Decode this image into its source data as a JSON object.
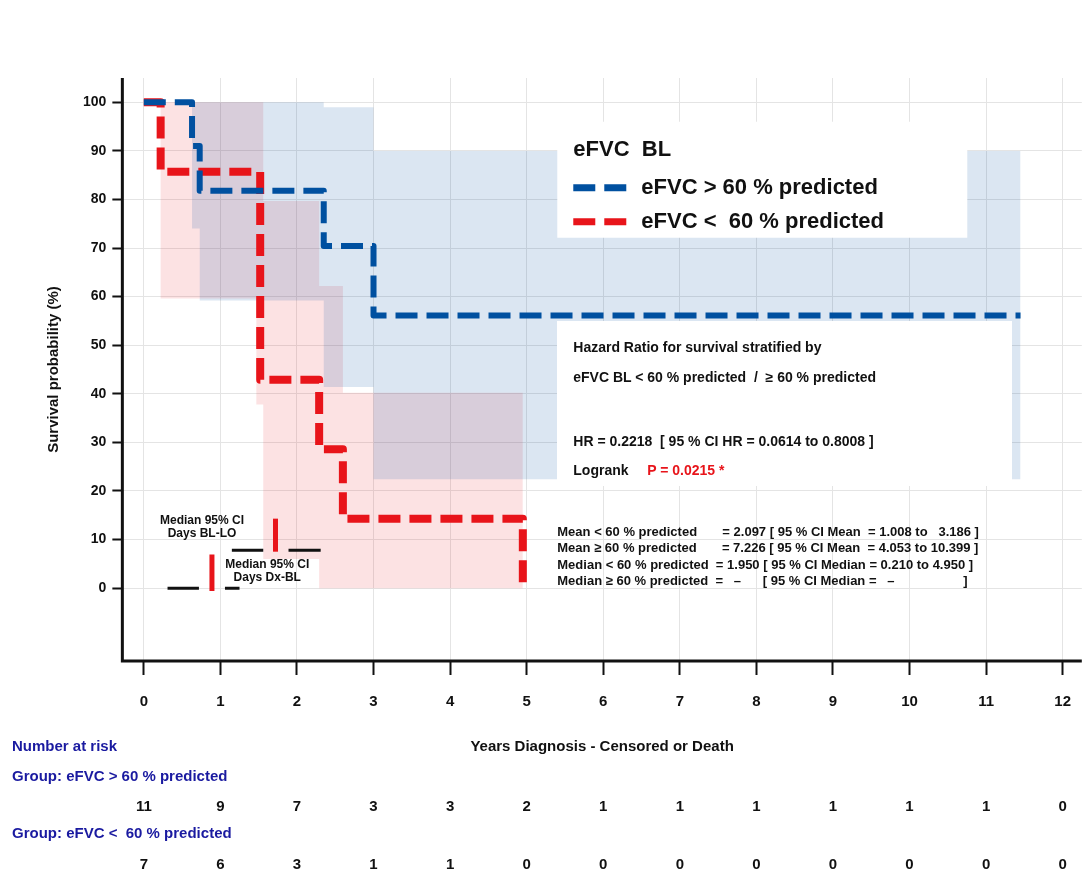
{
  "chart_data": {
    "type": "step",
    "xlabel": "Years Diagnosis - Censored or Death",
    "ylabel": "Survival probability (%)",
    "legend_title": "eFVC  BL",
    "legend": "top right",
    "grid": true,
    "xlim": [
      -0.28,
      12.25
    ],
    "xticks": [
      0,
      1,
      2,
      3,
      4,
      5,
      6,
      7,
      8,
      9,
      10,
      11,
      12
    ],
    "ylim": [
      -15,
      105
    ],
    "yticks": [
      0,
      10,
      20,
      30,
      40,
      50,
      60,
      70,
      80,
      90,
      100
    ],
    "line_style": "dashed",
    "marker": "none",
    "series": [
      {
        "name": "eFVC > 60 % predicted",
        "color": "#0050a0",
        "x": [
          0,
          0.63,
          0.73,
          2.35,
          3.0,
          11.45
        ],
        "values": [
          100,
          91,
          81.8,
          70.4,
          56.1,
          56.1
        ],
        "upper": [
          100,
          100,
          100,
          99,
          90,
          90
        ],
        "lower": [
          100,
          74,
          59.2,
          41.4,
          22.4,
          22.4
        ]
      },
      {
        "name": "eFVC <  60 % predicted",
        "color": "#e8141a",
        "x": [
          0,
          0.22,
          1.47,
          1.52,
          1.56,
          2.29,
          2.6,
          4.95
        ],
        "values": [
          100,
          85.7,
          85.7,
          42.9,
          42.9,
          28.6,
          14.3,
          0
        ],
        "upper": [
          100,
          100,
          100,
          100,
          79.7,
          62.2,
          40.2,
          40.2
        ],
        "lower": [
          100,
          59.6,
          37.8,
          37.8,
          6,
          0,
          0,
          0
        ]
      },
      {
        "color": "#111111",
        "type": "line",
        "line_style": "solid",
        "x": [
          0.31,
          0.72,
          0.9,
          1.06,
          1.25
        ],
        "values": [
          0,
          0,
          null,
          0,
          0
        ]
      },
      {
        "color": "#e8141a",
        "type": "line",
        "line_style": "solid",
        "x": [
          0.89,
          0.89
        ],
        "values": [
          -0.6,
          6.9
        ]
      },
      {
        "color": "#111111",
        "type": "line",
        "line_style": "solid",
        "x": [
          1.15,
          1.56,
          1.7,
          1.89,
          2.31
        ],
        "values": [
          7.8,
          7.8,
          null,
          7.8,
          7.8
        ]
      },
      {
        "color": "#e8141a",
        "type": "line",
        "line_style": "solid",
        "x": [
          1.72,
          1.72
        ],
        "values": [
          7.5,
          14.3
        ]
      }
    ],
    "annotations": [
      "Number at risk",
      "Group: eFVC > 60 % predicted",
      "11 9 7 3 3 2 1 1 1 1 1 1 0",
      "Group: eFVC <  60 % predicted",
      "7 6 3 1 1 0 0 0 0 0 0 0 0",
      "Median 95% CI\nDays BL-LO",
      "Median 95% CI\nDays Dx-BL",
      "Hazard Ratio for survival stratified by",
      "eFVC BL < 60 % predicted  /  ≥ 60 % predicted",
      "HR = 0.2218  [ 95 % CI HR = 0.0614 to 0.8008 ]",
      "Logrank",
      "P = 0.0215 *",
      "Mean < 60 % predicted       = 2.097 [ 95 % CI Mean  = 1.008 to   3.186 ]",
      "Mean ≥ 60 % predicted       = 7.226 [ 95 % CI Mean  = 4.053 to 10.399 ]",
      "Median < 60 % predicted  = 1.950 [ 95 % CI Median = 0.210 to 4.950 ]",
      "Median ≥ 60 % predicted  =   –      [ 95 % CI Median =   –                   ]"
    ]
  }
}
